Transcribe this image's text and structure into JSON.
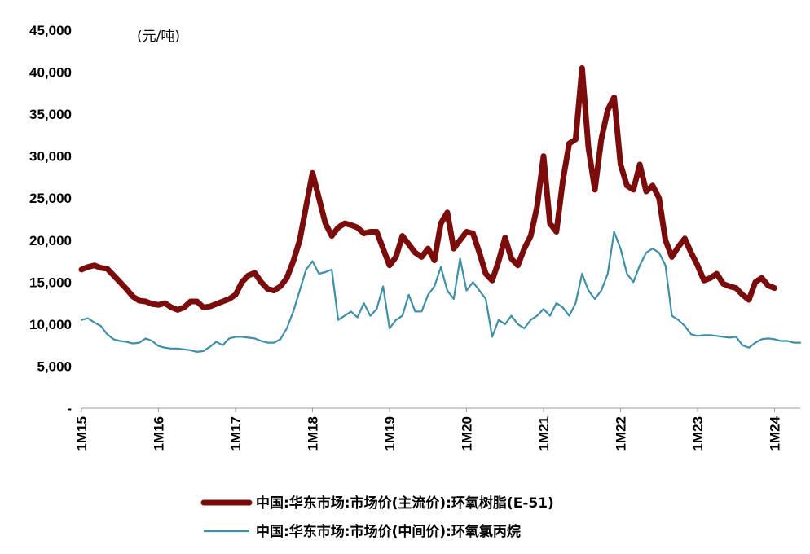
{
  "chart_data": {
    "type": "line",
    "unit_label": "(元/吨)",
    "y_ticks": [
      "-",
      "5,000",
      "10,000",
      "15,000",
      "20,000",
      "25,000",
      "30,000",
      "35,000",
      "40,000",
      "45,000"
    ],
    "ylim": [
      0,
      45000
    ],
    "x_ticks": [
      "1M15",
      "1M16",
      "1M17",
      "1M18",
      "1M19",
      "1M20",
      "1M21",
      "1M22",
      "1M23",
      "1M24"
    ],
    "xlim": [
      "2015-01",
      "2024-05"
    ],
    "legend_position": "bottom",
    "series": [
      {
        "name": "中国:华东市场:市场价(主流价):环氧树脂(E-51)",
        "color": "#7a0c0c",
        "points": [
          [
            "2015-01",
            16500
          ],
          [
            "2015-02",
            16800
          ],
          [
            "2015-03",
            17000
          ],
          [
            "2015-04",
            16700
          ],
          [
            "2015-05",
            16600
          ],
          [
            "2015-06",
            15800
          ],
          [
            "2015-07",
            15000
          ],
          [
            "2015-08",
            14200
          ],
          [
            "2015-09",
            13300
          ],
          [
            "2015-10",
            12800
          ],
          [
            "2015-11",
            12700
          ],
          [
            "2015-12",
            12400
          ],
          [
            "2016-01",
            12300
          ],
          [
            "2016-02",
            12500
          ],
          [
            "2016-03",
            12000
          ],
          [
            "2016-04",
            11700
          ],
          [
            "2016-05",
            12000
          ],
          [
            "2016-06",
            12700
          ],
          [
            "2016-07",
            12700
          ],
          [
            "2016-08",
            12000
          ],
          [
            "2016-09",
            12100
          ],
          [
            "2016-10",
            12400
          ],
          [
            "2016-11",
            12700
          ],
          [
            "2016-12",
            13000
          ],
          [
            "2017-01",
            13500
          ],
          [
            "2017-02",
            15000
          ],
          [
            "2017-03",
            15800
          ],
          [
            "2017-04",
            16100
          ],
          [
            "2017-05",
            15000
          ],
          [
            "2017-06",
            14200
          ],
          [
            "2017-07",
            14000
          ],
          [
            "2017-08",
            14500
          ],
          [
            "2017-09",
            15500
          ],
          [
            "2017-10",
            17500
          ],
          [
            "2017-11",
            20000
          ],
          [
            "2017-12",
            24000
          ],
          [
            "2018-01",
            28000
          ],
          [
            "2018-02",
            25000
          ],
          [
            "2018-03",
            22000
          ],
          [
            "2018-04",
            20500
          ],
          [
            "2018-05",
            21500
          ],
          [
            "2018-06",
            22000
          ],
          [
            "2018-07",
            21800
          ],
          [
            "2018-08",
            21500
          ],
          [
            "2018-09",
            20800
          ],
          [
            "2018-10",
            21000
          ],
          [
            "2018-11",
            21000
          ],
          [
            "2018-12",
            19000
          ],
          [
            "2019-01",
            17000
          ],
          [
            "2019-02",
            18000
          ],
          [
            "2019-03",
            20500
          ],
          [
            "2019-04",
            19500
          ],
          [
            "2019-05",
            18500
          ],
          [
            "2019-06",
            18000
          ],
          [
            "2019-07",
            19000
          ],
          [
            "2019-08",
            17600
          ],
          [
            "2019-09",
            22000
          ],
          [
            "2019-10",
            23300
          ],
          [
            "2019-11",
            19000
          ],
          [
            "2019-12",
            20000
          ],
          [
            "2020-01",
            21000
          ],
          [
            "2020-02",
            20800
          ],
          [
            "2020-03",
            18500
          ],
          [
            "2020-04",
            16000
          ],
          [
            "2020-05",
            15200
          ],
          [
            "2020-06",
            17500
          ],
          [
            "2020-07",
            20300
          ],
          [
            "2020-08",
            17800
          ],
          [
            "2020-09",
            17000
          ],
          [
            "2020-10",
            19000
          ],
          [
            "2020-11",
            20500
          ],
          [
            "2020-12",
            24000
          ],
          [
            "2021-01",
            30000
          ],
          [
            "2021-02",
            22000
          ],
          [
            "2021-03",
            21000
          ],
          [
            "2021-04",
            27000
          ],
          [
            "2021-05",
            31500
          ],
          [
            "2021-06",
            32000
          ],
          [
            "2021-07",
            40500
          ],
          [
            "2021-08",
            31000
          ],
          [
            "2021-09",
            26000
          ],
          [
            "2021-10",
            32000
          ],
          [
            "2021-11",
            35500
          ],
          [
            "2021-12",
            37000
          ],
          [
            "2022-01",
            29000
          ],
          [
            "2022-02",
            26500
          ],
          [
            "2022-03",
            26000
          ],
          [
            "2022-04",
            29000
          ],
          [
            "2022-05",
            25800
          ],
          [
            "2022-06",
            26500
          ],
          [
            "2022-07",
            25000
          ],
          [
            "2022-08",
            20000
          ],
          [
            "2022-09",
            18000
          ],
          [
            "2022-10",
            19200
          ],
          [
            "2022-11",
            20200
          ],
          [
            "2022-12",
            18500
          ],
          [
            "2023-01",
            17000
          ],
          [
            "2023-02",
            15200
          ],
          [
            "2023-03",
            15500
          ],
          [
            "2023-04",
            16000
          ],
          [
            "2023-05",
            14800
          ],
          [
            "2023-06",
            14500
          ],
          [
            "2023-07",
            14300
          ],
          [
            "2023-08",
            13500
          ],
          [
            "2023-09",
            12900
          ],
          [
            "2023-10",
            15000
          ],
          [
            "2023-11",
            15500
          ],
          [
            "2023-12",
            14600
          ],
          [
            "2024-01",
            14300
          ]
        ]
      },
      {
        "name": "中国:华东市场:市场价(中间价):环氧氯丙烷",
        "color": "#3f8fa6",
        "points": [
          [
            "2015-01",
            10500
          ],
          [
            "2015-02",
            10700
          ],
          [
            "2015-03",
            10200
          ],
          [
            "2015-04",
            9800
          ],
          [
            "2015-05",
            8800
          ],
          [
            "2015-06",
            8200
          ],
          [
            "2015-07",
            8000
          ],
          [
            "2015-08",
            7900
          ],
          [
            "2015-09",
            7700
          ],
          [
            "2015-10",
            7800
          ],
          [
            "2015-11",
            8300
          ],
          [
            "2015-12",
            8000
          ],
          [
            "2016-01",
            7400
          ],
          [
            "2016-02",
            7200
          ],
          [
            "2016-03",
            7100
          ],
          [
            "2016-04",
            7100
          ],
          [
            "2016-05",
            7000
          ],
          [
            "2016-06",
            6900
          ],
          [
            "2016-07",
            6700
          ],
          [
            "2016-08",
            6800
          ],
          [
            "2016-09",
            7300
          ],
          [
            "2016-10",
            7900
          ],
          [
            "2016-11",
            7500
          ],
          [
            "2016-12",
            8300
          ],
          [
            "2017-01",
            8500
          ],
          [
            "2017-02",
            8500
          ],
          [
            "2017-03",
            8400
          ],
          [
            "2017-04",
            8300
          ],
          [
            "2017-05",
            8000
          ],
          [
            "2017-06",
            7800
          ],
          [
            "2017-07",
            7800
          ],
          [
            "2017-08",
            8200
          ],
          [
            "2017-09",
            9500
          ],
          [
            "2017-10",
            11500
          ],
          [
            "2017-11",
            14000
          ],
          [
            "2017-12",
            16500
          ],
          [
            "2018-01",
            17500
          ],
          [
            "2018-02",
            16000
          ],
          [
            "2018-03",
            16200
          ],
          [
            "2018-04",
            16500
          ],
          [
            "2018-05",
            10500
          ],
          [
            "2018-06",
            11000
          ],
          [
            "2018-07",
            11500
          ],
          [
            "2018-08",
            10800
          ],
          [
            "2018-09",
            12500
          ],
          [
            "2018-10",
            11000
          ],
          [
            "2018-11",
            11800
          ],
          [
            "2018-12",
            14500
          ],
          [
            "2019-01",
            9500
          ],
          [
            "2019-02",
            10500
          ],
          [
            "2019-03",
            11000
          ],
          [
            "2019-04",
            13500
          ],
          [
            "2019-05",
            11500
          ],
          [
            "2019-06",
            11500
          ],
          [
            "2019-07",
            13500
          ],
          [
            "2019-08",
            14500
          ],
          [
            "2019-09",
            16800
          ],
          [
            "2019-10",
            14000
          ],
          [
            "2019-11",
            13000
          ],
          [
            "2019-12",
            17800
          ],
          [
            "2020-01",
            14000
          ],
          [
            "2020-02",
            15000
          ],
          [
            "2020-03",
            14000
          ],
          [
            "2020-04",
            13000
          ],
          [
            "2020-05",
            8500
          ],
          [
            "2020-06",
            10500
          ],
          [
            "2020-07",
            10000
          ],
          [
            "2020-08",
            11000
          ],
          [
            "2020-09",
            10000
          ],
          [
            "2020-10",
            9500
          ],
          [
            "2020-11",
            10500
          ],
          [
            "2020-12",
            11000
          ],
          [
            "2021-01",
            11800
          ],
          [
            "2021-02",
            11000
          ],
          [
            "2021-03",
            12500
          ],
          [
            "2021-04",
            12000
          ],
          [
            "2021-05",
            11000
          ],
          [
            "2021-06",
            12500
          ],
          [
            "2021-07",
            16000
          ],
          [
            "2021-08",
            14000
          ],
          [
            "2021-09",
            13000
          ],
          [
            "2021-10",
            14000
          ],
          [
            "2021-11",
            16000
          ],
          [
            "2021-12",
            21000
          ],
          [
            "2022-01",
            19000
          ],
          [
            "2022-02",
            16000
          ],
          [
            "2022-03",
            15000
          ],
          [
            "2022-04",
            17000
          ],
          [
            "2022-05",
            18500
          ],
          [
            "2022-06",
            19000
          ],
          [
            "2022-07",
            18500
          ],
          [
            "2022-08",
            17000
          ],
          [
            "2022-09",
            11000
          ],
          [
            "2022-10",
            10500
          ],
          [
            "2022-11",
            9800
          ],
          [
            "2022-12",
            8800
          ],
          [
            "2023-01",
            8600
          ],
          [
            "2023-02",
            8700
          ],
          [
            "2023-03",
            8700
          ],
          [
            "2023-04",
            8600
          ],
          [
            "2023-05",
            8500
          ],
          [
            "2023-06",
            8400
          ],
          [
            "2023-07",
            8500
          ],
          [
            "2023-08",
            7500
          ],
          [
            "2023-09",
            7200
          ],
          [
            "2023-10",
            7800
          ],
          [
            "2023-11",
            8200
          ],
          [
            "2023-12",
            8300
          ],
          [
            "2024-01",
            8200
          ],
          [
            "2024-02",
            8000
          ],
          [
            "2024-03",
            8000
          ],
          [
            "2024-04",
            7800
          ],
          [
            "2024-05",
            7800
          ]
        ]
      }
    ]
  }
}
